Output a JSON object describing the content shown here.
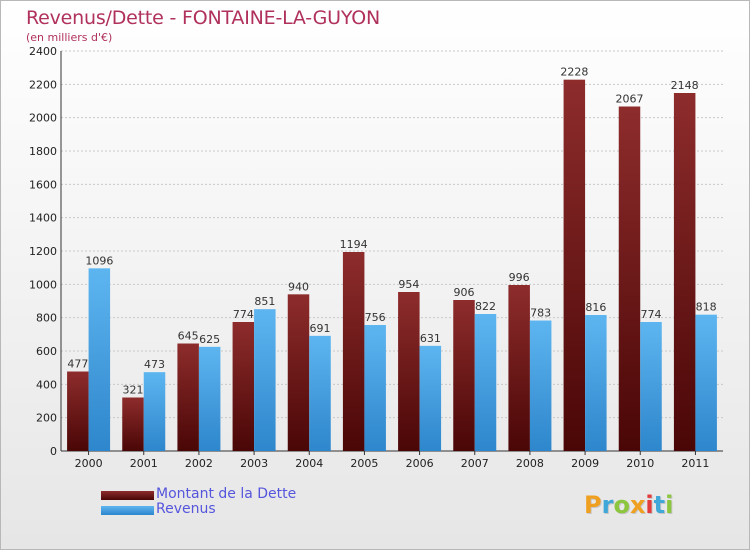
{
  "title": "Revenus/Dette - FONTAINE-LA-GUYON",
  "subtitle": "(en milliers d'€)",
  "logo": {
    "letters": [
      "P",
      "r",
      "o",
      "x",
      "i",
      "t",
      "i"
    ],
    "colors": [
      "#f0a020",
      "#3fa8d8",
      "#8cc63f",
      "#f0a020",
      "#e23b3b",
      "#3fa8d8",
      "#8cc63f"
    ]
  },
  "legend": [
    {
      "label": "Montant de la Dette",
      "color": "#7a1a1a"
    },
    {
      "label": "Revenus",
      "color": "#3d9fe0"
    }
  ],
  "chart_data": {
    "type": "bar",
    "categories": [
      "2000",
      "2001",
      "2002",
      "2003",
      "2004",
      "2005",
      "2006",
      "2007",
      "2008",
      "2009",
      "2010",
      "2011"
    ],
    "series": [
      {
        "name": "Montant de la Dette",
        "color": "#7a1a1a",
        "values": [
          477,
          321,
          645,
          774,
          940,
          1194,
          954,
          906,
          996,
          2228,
          2067,
          2148
        ]
      },
      {
        "name": "Revenus",
        "color": "#3d9fe0",
        "values": [
          1096,
          473,
          625,
          851,
          691,
          756,
          631,
          822,
          783,
          816,
          774,
          818
        ]
      }
    ],
    "yticks": [
      0,
      200,
      400,
      600,
      800,
      1000,
      1200,
      1400,
      1600,
      1800,
      2000,
      2200,
      2400
    ],
    "ylim": [
      0,
      2400
    ],
    "grid": true,
    "legend_position": "bottom-left"
  }
}
